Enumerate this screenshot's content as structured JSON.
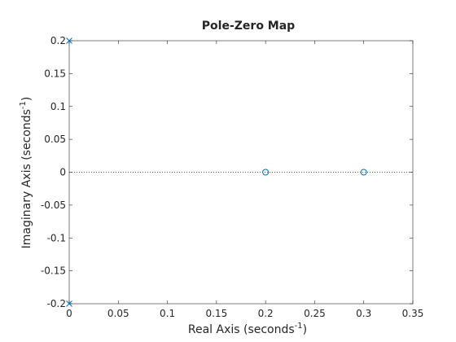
{
  "chart_data": {
    "type": "pzmap",
    "title": "Pole-Zero Map",
    "xlabel": [
      "Real Axis (seconds",
      "-1",
      ")"
    ],
    "ylabel": [
      "Imaginary Axis (seconds",
      "-1",
      ")"
    ],
    "xlim": [
      0,
      0.35
    ],
    "ylim": [
      -0.2,
      0.2
    ],
    "xticks": [
      0,
      0.05,
      0.1,
      0.15,
      0.2,
      0.25,
      0.3,
      0.35
    ],
    "yticks": [
      -0.2,
      -0.15,
      -0.1,
      -0.05,
      0,
      0.05,
      0.1,
      0.15,
      0.2
    ],
    "zero_line": true,
    "series": [
      {
        "marker": "x",
        "color": "#0072bd",
        "x": [
          0,
          0
        ],
        "values": [
          0.2,
          -0.2
        ]
      },
      {
        "marker": "o",
        "color": "#0072bd",
        "x": [
          0.2,
          0.3
        ],
        "values": [
          0,
          0
        ]
      }
    ]
  }
}
